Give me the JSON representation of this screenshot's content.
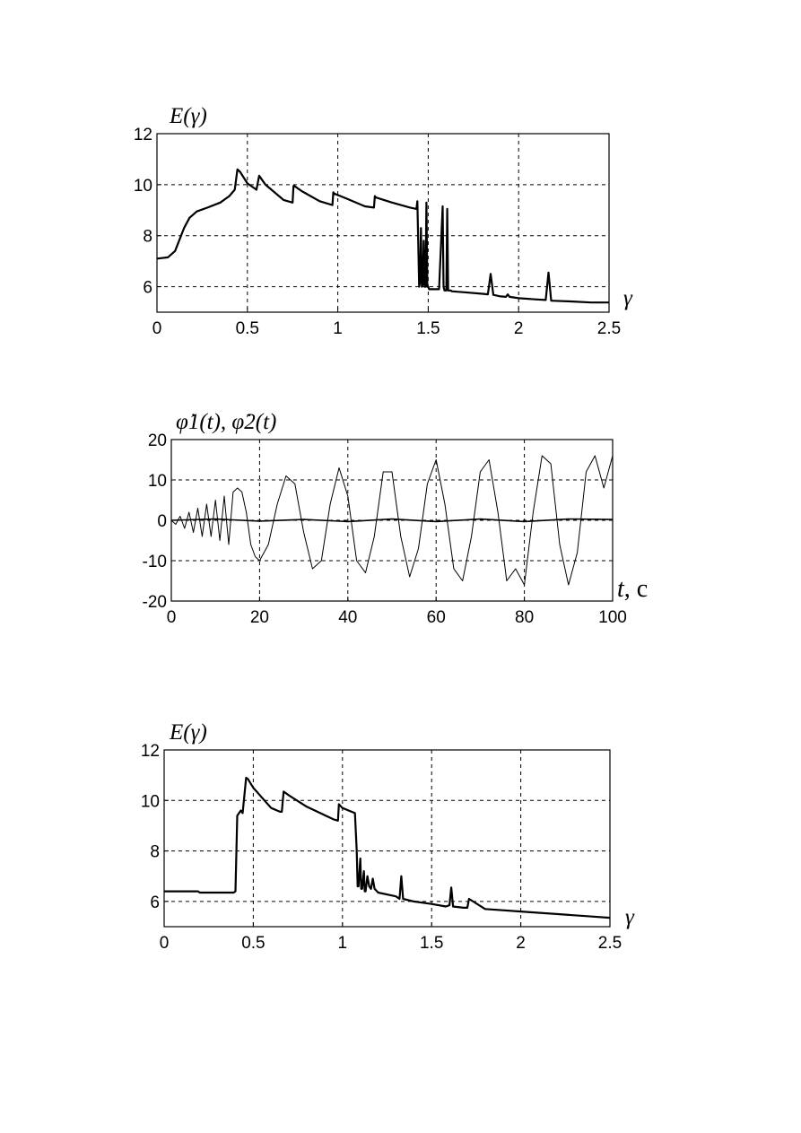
{
  "chart_data": [
    {
      "type": "line",
      "ylabel": "E(γ)",
      "xlabel": "γ",
      "xlim": [
        0,
        2.5
      ],
      "ylim": [
        5,
        12
      ],
      "xticks": [
        0,
        0.5,
        1,
        1.5,
        2,
        2.5
      ],
      "xtick_labels": [
        "0",
        "0.5",
        "1",
        "1.5",
        "2",
        "2.5"
      ],
      "yticks": [
        6,
        8,
        10,
        12
      ],
      "ytick_labels": [
        "6",
        "8",
        "10",
        "12"
      ],
      "grid": true,
      "series": [
        {
          "x": [
            0,
            0.06,
            0.1,
            0.15,
            0.18,
            0.22,
            0.28,
            0.35,
            0.4,
            0.43,
            0.445,
            0.46,
            0.5,
            0.55,
            0.565,
            0.57,
            0.6,
            0.7,
            0.75,
            0.755,
            0.76,
            0.8,
            0.9,
            0.97,
            0.975,
            0.98,
            1.05,
            1.15,
            1.2,
            1.205,
            1.21,
            1.3,
            1.4,
            1.435,
            1.44,
            1.45,
            1.455,
            1.46,
            1.465,
            1.47,
            1.475,
            1.48,
            1.485,
            1.49,
            1.495,
            1.5,
            1.505,
            1.51,
            1.53,
            1.56,
            1.58,
            1.585,
            1.59,
            1.6,
            1.605,
            1.61,
            1.615,
            1.62,
            1.625,
            1.63,
            1.7,
            1.8,
            1.83,
            1.845,
            1.86,
            1.9,
            1.93,
            1.94,
            1.95,
            2.0,
            2.1,
            2.15,
            2.165,
            2.18,
            2.3,
            2.4,
            2.5
          ],
          "y": [
            7.1,
            7.15,
            7.4,
            8.3,
            8.7,
            8.95,
            9.1,
            9.3,
            9.55,
            9.8,
            10.6,
            10.5,
            10.05,
            9.8,
            10.35,
            10.3,
            10.0,
            9.4,
            9.3,
            9.95,
            9.95,
            9.75,
            9.35,
            9.2,
            9.7,
            9.65,
            9.45,
            9.15,
            9.1,
            9.55,
            9.5,
            9.3,
            9.1,
            9.05,
            9.35,
            6.0,
            6.2,
            8.3,
            6.0,
            6.1,
            7.8,
            6.0,
            6.0,
            9.3,
            6.0,
            6.0,
            5.9,
            5.9,
            5.9,
            5.9,
            9.15,
            6.0,
            5.85,
            5.85,
            9.05,
            5.85,
            5.85,
            5.85,
            5.85,
            5.82,
            5.78,
            5.72,
            5.7,
            6.5,
            5.68,
            5.62,
            5.6,
            5.7,
            5.6,
            5.55,
            5.5,
            5.48,
            6.55,
            5.45,
            5.42,
            5.38,
            5.38
          ]
        }
      ]
    },
    {
      "type": "line",
      "ylabel": "φ̇1(t), φ̇2(t)",
      "xlabel_var": "t",
      "xlabel_unit": ", c",
      "xlim": [
        0,
        100
      ],
      "ylim": [
        -20,
        20
      ],
      "xticks": [
        0,
        20,
        40,
        60,
        80,
        100
      ],
      "xtick_labels": [
        "0",
        "20",
        "40",
        "60",
        "80",
        "100"
      ],
      "yticks": [
        -20,
        -10,
        0,
        10,
        20
      ],
      "ytick_labels": [
        "-20",
        "-10",
        "0",
        "10",
        "20"
      ],
      "grid": true,
      "series": [
        {
          "desc": "oscillation 1",
          "x": [
            0,
            1,
            2,
            3,
            4,
            5,
            6,
            7,
            8,
            9,
            10,
            11,
            12,
            13,
            14,
            15,
            16,
            17,
            18,
            19,
            20,
            22,
            24,
            26,
            28,
            30,
            32,
            34,
            36,
            38,
            40,
            42,
            44,
            46,
            48,
            50,
            52,
            54,
            56,
            58,
            60,
            62,
            64,
            66,
            68,
            70,
            72,
            74,
            76,
            78,
            80,
            82,
            84,
            86,
            88,
            90,
            92,
            94,
            96,
            98,
            100
          ],
          "y": [
            0,
            -1,
            1,
            -2,
            2,
            -3,
            3,
            -4,
            4,
            -4,
            5,
            -5,
            6,
            -6,
            7,
            8,
            7,
            2,
            -6,
            -9,
            -10,
            -6,
            4,
            11,
            9,
            -3,
            -12,
            -10,
            4,
            13,
            6,
            -10,
            -13,
            -4,
            12,
            12,
            -4,
            -14,
            -7,
            9,
            15,
            4,
            -12,
            -15,
            -4,
            12,
            15,
            2,
            -15,
            -12,
            -16,
            2,
            16,
            14,
            -6,
            -16,
            -8,
            12,
            16,
            8,
            16
          ]
        },
        {
          "desc": "oscillation 2",
          "x": [
            0,
            10,
            20,
            30,
            40,
            50,
            60,
            70,
            80,
            90,
            100
          ],
          "y": [
            0,
            0.3,
            -0.2,
            0.2,
            -0.3,
            0.3,
            -0.3,
            0.3,
            -0.3,
            0.3,
            0.2
          ]
        }
      ]
    },
    {
      "type": "line",
      "ylabel": "E(γ)",
      "xlabel": "γ",
      "xlim": [
        0,
        2.5
      ],
      "ylim": [
        5,
        12
      ],
      "xticks": [
        0,
        0.5,
        1,
        1.5,
        2,
        2.5
      ],
      "xtick_labels": [
        "0",
        "0.5",
        "1",
        "1.5",
        "2",
        "2.5"
      ],
      "yticks": [
        6,
        8,
        10,
        12
      ],
      "ytick_labels": [
        "6",
        "8",
        "10",
        "12"
      ],
      "grid": true,
      "series": [
        {
          "x": [
            0,
            0.19,
            0.2,
            0.39,
            0.4,
            0.41,
            0.43,
            0.44,
            0.46,
            0.47,
            0.5,
            0.6,
            0.65,
            0.66,
            0.67,
            0.7,
            0.8,
            0.95,
            0.975,
            0.98,
            1.0,
            1.07,
            1.08,
            1.085,
            1.09,
            1.1,
            1.105,
            1.11,
            1.12,
            1.125,
            1.13,
            1.14,
            1.15,
            1.16,
            1.17,
            1.18,
            1.2,
            1.3,
            1.32,
            1.33,
            1.34,
            1.4,
            1.5,
            1.58,
            1.6,
            1.61,
            1.62,
            1.68,
            1.7,
            1.71,
            1.8,
            2.0,
            2.2,
            2.4,
            2.5
          ],
          "y": [
            6.4,
            6.4,
            6.35,
            6.35,
            6.4,
            9.4,
            9.6,
            9.5,
            10.9,
            10.85,
            10.5,
            9.7,
            9.55,
            9.55,
            10.35,
            10.2,
            9.75,
            9.25,
            9.2,
            9.85,
            9.7,
            9.5,
            8.0,
            6.6,
            6.6,
            7.7,
            6.5,
            6.5,
            7.2,
            6.4,
            6.4,
            7.0,
            6.6,
            6.5,
            6.9,
            6.5,
            6.35,
            6.2,
            6.1,
            7.0,
            6.1,
            6.0,
            5.9,
            5.8,
            5.85,
            6.55,
            5.8,
            5.75,
            5.75,
            6.1,
            5.7,
            5.6,
            5.5,
            5.4,
            5.35
          ]
        }
      ]
    }
  ]
}
